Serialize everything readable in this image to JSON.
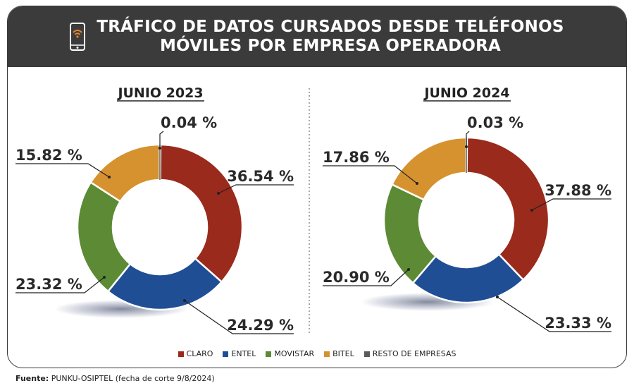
{
  "header": {
    "title_line1": "TRÁFICO DE DATOS CURSADOS DESDE TELÉFONOS",
    "title_line2": "MÓVILES POR EMPRESA OPERADORA"
  },
  "colors": {
    "claro": "#9a2a1c",
    "entel": "#1f4e95",
    "movistar": "#5c8a35",
    "bitel": "#d6922f",
    "resto": "#5a5a5a",
    "header_bg": "#3b3b3b",
    "icon_accent": "#e8842c"
  },
  "chart_data": [
    {
      "type": "pie",
      "title": "JUNIO 2023",
      "categories": [
        "CLARO",
        "ENTEL",
        "MOVISTAR",
        "BITEL",
        "RESTO DE EMPRESAS"
      ],
      "values": [
        36.54,
        24.29,
        23.32,
        15.82,
        0.04
      ],
      "labels": [
        "36.54 %",
        "24.29 %",
        "23.32 %",
        "15.82 %",
        "0.04 %"
      ]
    },
    {
      "type": "pie",
      "title": "JUNIO 2024",
      "categories": [
        "CLARO",
        "ENTEL",
        "MOVISTAR",
        "BITEL",
        "RESTO DE EMPRESAS"
      ],
      "values": [
        37.88,
        23.33,
        20.9,
        17.86,
        0.03
      ],
      "labels": [
        "37.88 %",
        "23.33 %",
        "20.90 %",
        "17.86 %",
        "0.03 %"
      ]
    }
  ],
  "legend": {
    "items": [
      {
        "label": "CLARO",
        "color": "#9a2a1c"
      },
      {
        "label": "ENTEL",
        "color": "#1f4e95"
      },
      {
        "label": "MOVISTAR",
        "color": "#5c8a35"
      },
      {
        "label": "BITEL",
        "color": "#d6922f"
      },
      {
        "label": "RESTO DE EMPRESAS",
        "color": "#5a5a5a"
      }
    ]
  },
  "source": {
    "label": "Fuente:",
    "text": "PUNKU-OSIPTEL (fecha de corte 9/8/2024)"
  }
}
